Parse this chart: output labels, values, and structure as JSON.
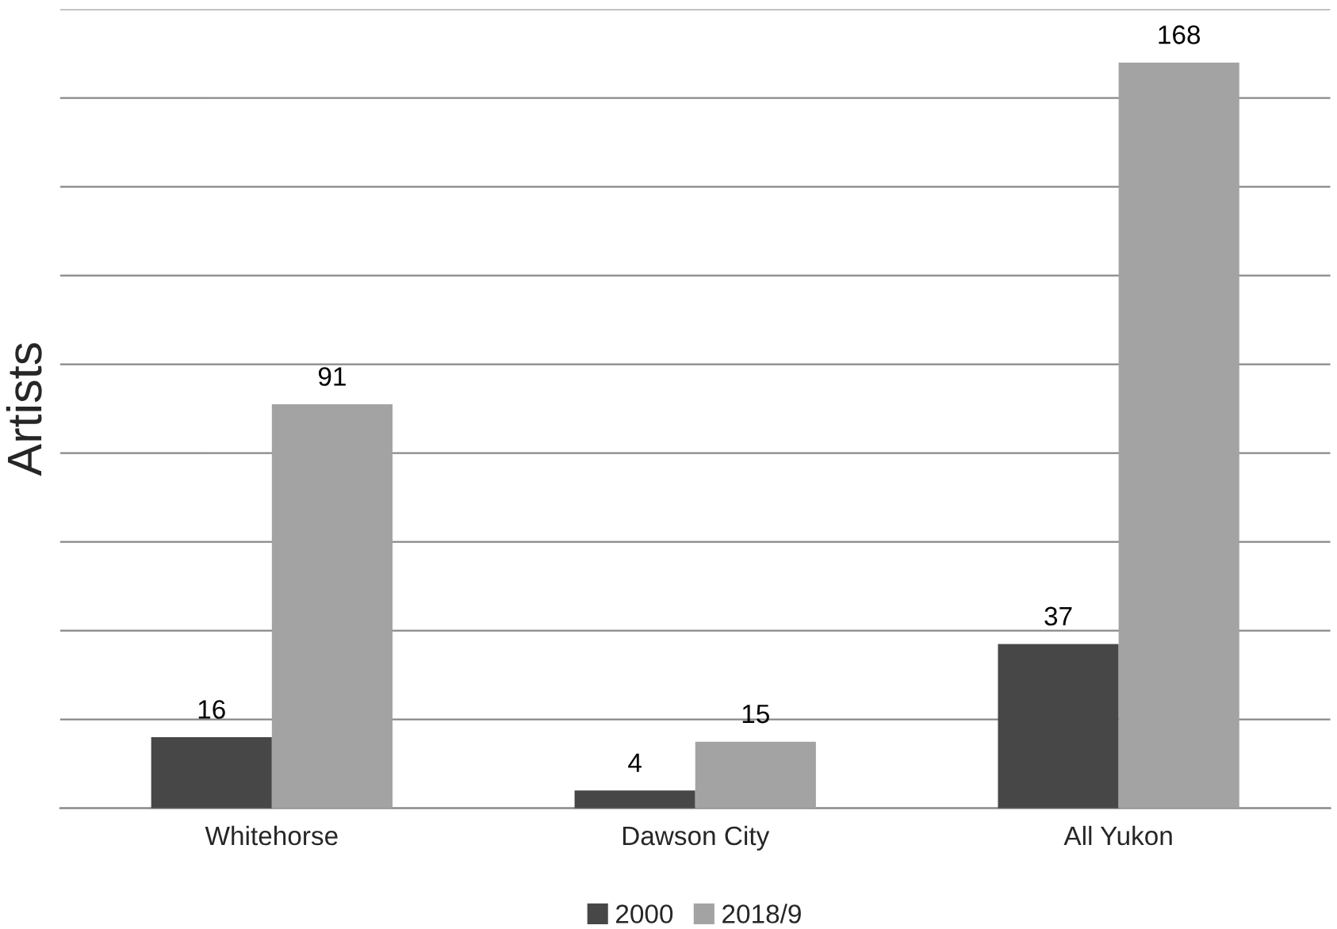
{
  "chart_data": {
    "type": "bar",
    "ylabel": "Artists",
    "categories": [
      "Whitehorse",
      "Dawson City",
      "All Yukon"
    ],
    "series": [
      {
        "name": "2000",
        "color": "#474747",
        "values": [
          16,
          4,
          37
        ]
      },
      {
        "name": "2018/9",
        "color": "#a3a3a3",
        "values": [
          91,
          15,
          168
        ]
      }
    ],
    "ylim": [
      0,
      180
    ],
    "yticks": [
      {
        "value": 0,
        "label": null
      },
      {
        "value": 20,
        "label": null
      },
      {
        "value": 40,
        "label": null
      },
      {
        "value": 60,
        "label": null
      },
      {
        "value": 80,
        "label": null
      },
      {
        "value": 100,
        "label": null
      },
      {
        "value": 120,
        "label": null
      },
      {
        "value": 140,
        "label": null
      },
      {
        "value": 160,
        "label": null
      },
      {
        "value": 180,
        "label": null
      }
    ],
    "tick_labels": "x",
    "grid": "y",
    "legend": "bottom",
    "data_labels": true
  }
}
